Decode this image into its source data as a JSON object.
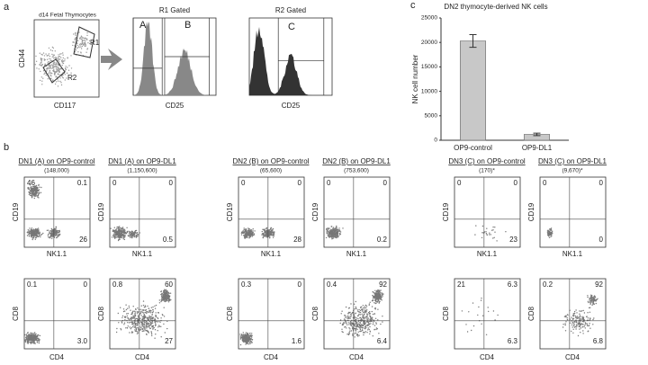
{
  "panel_a": {
    "label": "a",
    "scatter_title": "d14 Fetal Thymocytes",
    "y_axis": "CD44",
    "x_axis": "CD117",
    "gates": [
      "R1",
      "R2"
    ],
    "histograms": [
      {
        "title": "R1 Gated",
        "gates": [
          "A",
          "B"
        ],
        "x_axis": "CD25"
      },
      {
        "title": "R2 Gated",
        "gates": [
          "C"
        ],
        "x_axis": "CD25"
      }
    ]
  },
  "panel_b": {
    "label": "b",
    "top_axes": {
      "x": "NK1.1",
      "y": "CD19"
    },
    "bottom_axes": {
      "x": "CD4",
      "y": "CD8"
    },
    "columns": [
      {
        "title": "DN1 (A) on OP9-control",
        "count": "(148,000)",
        "top": {
          "upper_left": "46",
          "upper_right": "0.1",
          "lower_right": "26"
        },
        "bottom": {
          "upper_left": "0.1",
          "upper_right": "0",
          "lower_right": "3.0"
        }
      },
      {
        "title": "DN1 (A) on OP9-DL1",
        "count": "(1,150,600)",
        "top": {
          "upper_left": "0",
          "upper_right": "0",
          "lower_right": "0.5"
        },
        "bottom": {
          "upper_left": "0.8",
          "upper_right": "60",
          "lower_right": "27"
        }
      },
      {
        "title": "DN2 (B) on OP9-control",
        "count": "(65,600)",
        "top": {
          "upper_left": "0",
          "upper_right": "0",
          "lower_right": "28"
        },
        "bottom": {
          "upper_left": "0.3",
          "upper_right": "0",
          "lower_right": "1.6"
        }
      },
      {
        "title": "DN2 (B) on OP9-DL1",
        "count": "(753,600)",
        "top": {
          "upper_left": "0",
          "upper_right": "0",
          "lower_right": "0.2"
        },
        "bottom": {
          "upper_left": "0.4",
          "upper_right": "92",
          "lower_right": "6.4"
        }
      },
      {
        "title": "DN3 (C) on OP9-control",
        "count": "(170)*",
        "top": {
          "upper_left": "0",
          "upper_right": "0",
          "lower_right": "23"
        },
        "bottom": {
          "upper_left": "21",
          "upper_right": "6.3",
          "lower_right": "6.3"
        }
      },
      {
        "title": "DN3 (C) on OP9-DL1",
        "count": "(9,670)*",
        "top": {
          "upper_left": "0",
          "upper_right": "0",
          "lower_right": "0"
        },
        "bottom": {
          "upper_left": "0.2",
          "upper_right": "92",
          "lower_right": "6.8"
        }
      }
    ]
  },
  "chart_data": {
    "type": "bar",
    "label": "c",
    "title": "DN2 thymocyte-derived NK cells",
    "y_label": "NK cell number",
    "categories": [
      "OP9-control",
      "OP9-DL1"
    ],
    "values": [
      20300,
      1200
    ],
    "errors": [
      1300,
      250
    ],
    "color": "#c8c8c8",
    "ylim": [
      0,
      25000
    ],
    "yticks": [
      0,
      5000,
      10000,
      15000,
      20000,
      25000
    ]
  }
}
